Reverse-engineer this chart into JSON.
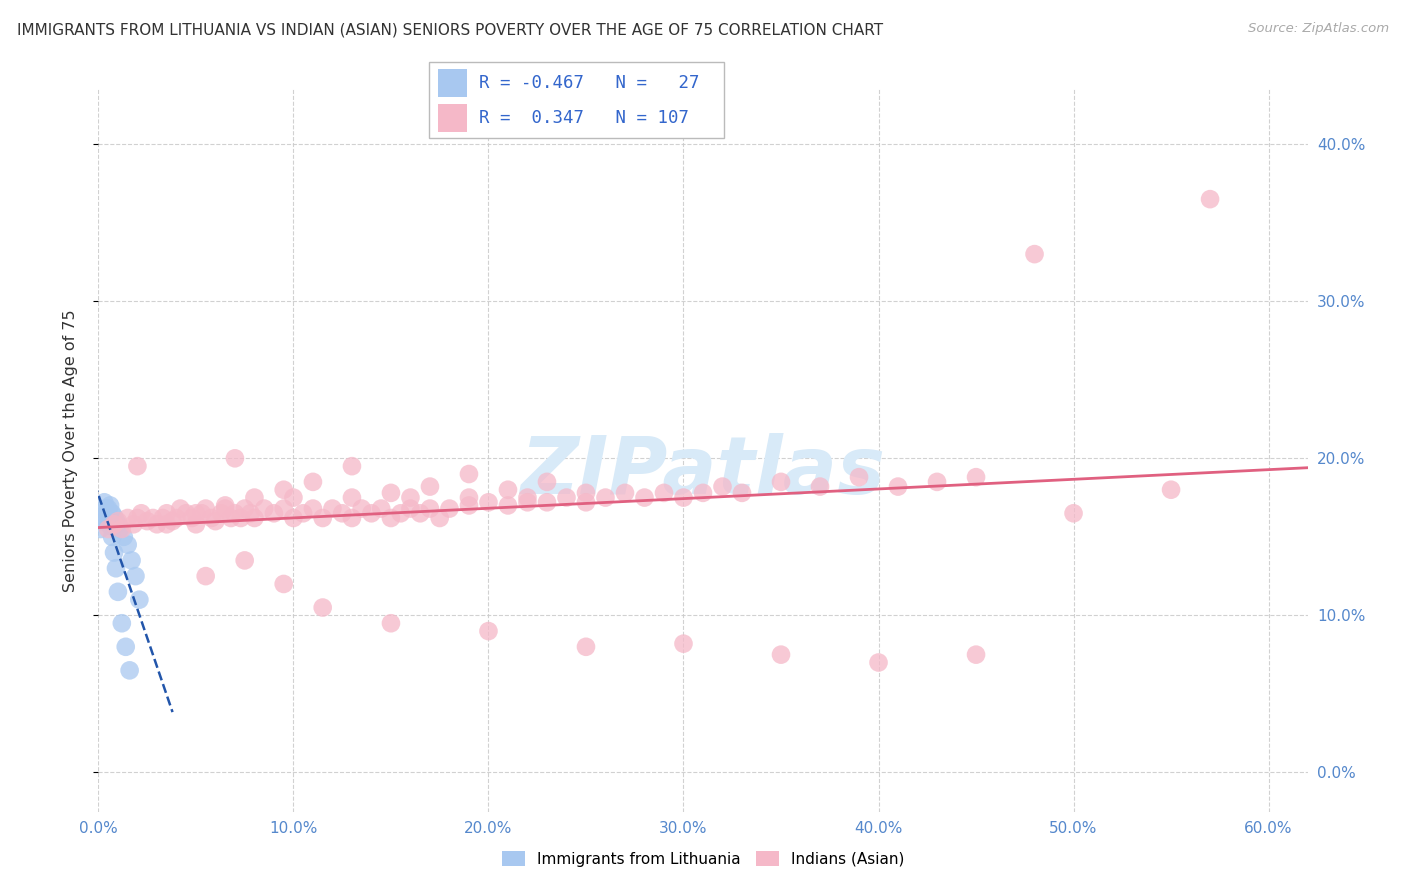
{
  "title": "IMMIGRANTS FROM LITHUANIA VS INDIAN (ASIAN) SENIORS POVERTY OVER THE AGE OF 75 CORRELATION CHART",
  "source": "Source: ZipAtlas.com",
  "ylabel": "Seniors Poverty Over the Age of 75",
  "xlim": [
    0.0,
    0.62
  ],
  "ylim": [
    -0.025,
    0.435
  ],
  "x_ticks": [
    0.0,
    0.1,
    0.2,
    0.3,
    0.4,
    0.5,
    0.6
  ],
  "y_ticks": [
    0.0,
    0.1,
    0.2,
    0.3,
    0.4
  ],
  "legend1_label": "Immigrants from Lithuania",
  "legend2_label": "Indians (Asian)",
  "R1": -0.467,
  "N1": 27,
  "R2": 0.347,
  "N2": 107,
  "color_blue": "#A8C8F0",
  "color_pink": "#F5B8C8",
  "color_blue_line": "#2255AA",
  "color_pink_line": "#E06080",
  "watermark_color": "#D8EAF8",
  "lith_x": [
    0.001,
    0.002,
    0.003,
    0.004,
    0.005,
    0.006,
    0.007,
    0.008,
    0.009,
    0.01,
    0.011,
    0.013,
    0.015,
    0.017,
    0.019,
    0.021,
    0.003,
    0.004,
    0.005,
    0.006,
    0.007,
    0.008,
    0.009,
    0.01,
    0.012,
    0.014,
    0.016
  ],
  "lith_y": [
    0.155,
    0.16,
    0.162,
    0.165,
    0.168,
    0.17,
    0.165,
    0.163,
    0.16,
    0.158,
    0.155,
    0.15,
    0.145,
    0.135,
    0.125,
    0.11,
    0.172,
    0.168,
    0.162,
    0.157,
    0.15,
    0.14,
    0.13,
    0.115,
    0.095,
    0.08,
    0.065
  ],
  "indian_x": [
    0.005,
    0.008,
    0.01,
    0.012,
    0.015,
    0.018,
    0.02,
    0.022,
    0.025,
    0.028,
    0.03,
    0.033,
    0.035,
    0.038,
    0.04,
    0.042,
    0.045,
    0.048,
    0.05,
    0.053,
    0.055,
    0.058,
    0.06,
    0.063,
    0.065,
    0.068,
    0.07,
    0.073,
    0.075,
    0.078,
    0.08,
    0.085,
    0.09,
    0.095,
    0.1,
    0.105,
    0.11,
    0.115,
    0.12,
    0.125,
    0.13,
    0.135,
    0.14,
    0.145,
    0.15,
    0.155,
    0.16,
    0.165,
    0.17,
    0.175,
    0.18,
    0.19,
    0.2,
    0.21,
    0.22,
    0.23,
    0.24,
    0.25,
    0.26,
    0.27,
    0.28,
    0.29,
    0.3,
    0.31,
    0.32,
    0.33,
    0.35,
    0.37,
    0.39,
    0.41,
    0.43,
    0.45,
    0.02,
    0.035,
    0.05,
    0.065,
    0.08,
    0.095,
    0.11,
    0.13,
    0.15,
    0.17,
    0.19,
    0.21,
    0.23,
    0.25,
    0.07,
    0.1,
    0.13,
    0.16,
    0.19,
    0.22,
    0.055,
    0.075,
    0.095,
    0.115,
    0.15,
    0.2,
    0.25,
    0.3,
    0.35,
    0.4,
    0.45,
    0.5,
    0.55,
    0.57,
    0.48
  ],
  "indian_y": [
    0.155,
    0.158,
    0.16,
    0.155,
    0.162,
    0.158,
    0.162,
    0.165,
    0.16,
    0.162,
    0.158,
    0.162,
    0.165,
    0.16,
    0.162,
    0.168,
    0.165,
    0.162,
    0.158,
    0.165,
    0.168,
    0.162,
    0.16,
    0.165,
    0.168,
    0.162,
    0.165,
    0.162,
    0.168,
    0.165,
    0.162,
    0.168,
    0.165,
    0.168,
    0.162,
    0.165,
    0.168,
    0.162,
    0.168,
    0.165,
    0.162,
    0.168,
    0.165,
    0.168,
    0.162,
    0.165,
    0.168,
    0.165,
    0.168,
    0.162,
    0.168,
    0.17,
    0.172,
    0.17,
    0.175,
    0.172,
    0.175,
    0.172,
    0.175,
    0.178,
    0.175,
    0.178,
    0.175,
    0.178,
    0.182,
    0.178,
    0.185,
    0.182,
    0.188,
    0.182,
    0.185,
    0.188,
    0.195,
    0.158,
    0.165,
    0.17,
    0.175,
    0.18,
    0.185,
    0.175,
    0.178,
    0.182,
    0.175,
    0.18,
    0.185,
    0.178,
    0.2,
    0.175,
    0.195,
    0.175,
    0.19,
    0.172,
    0.125,
    0.135,
    0.12,
    0.105,
    0.095,
    0.09,
    0.08,
    0.082,
    0.075,
    0.07,
    0.075,
    0.165,
    0.18,
    0.365,
    0.33
  ]
}
